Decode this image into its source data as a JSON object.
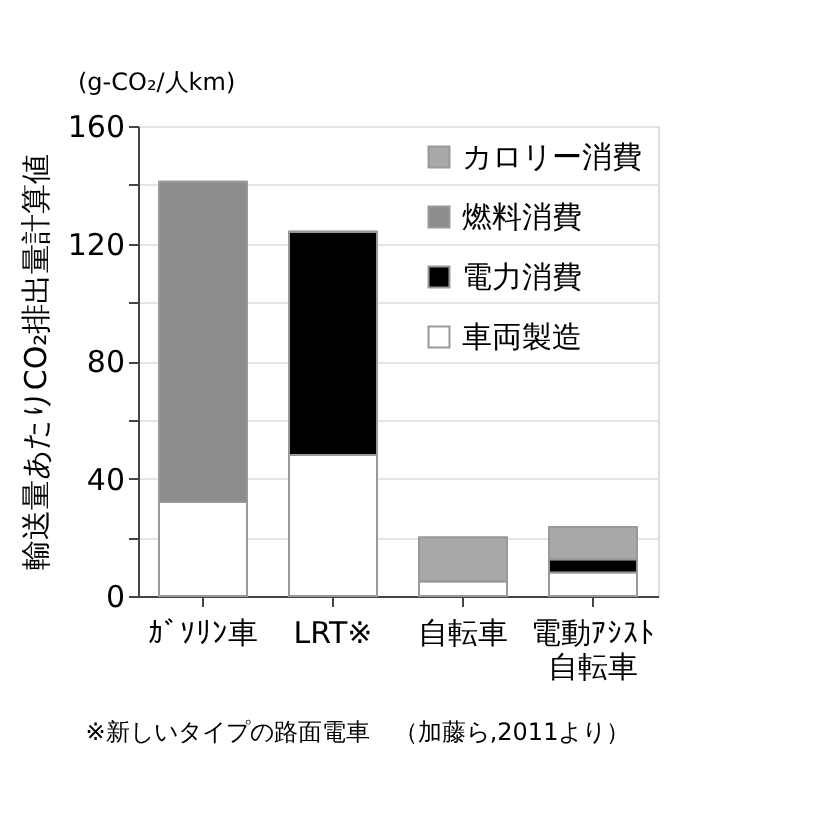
{
  "chart_data": {
    "type": "bar",
    "stacked": true,
    "ylabel": "輸送量あたりCO₂排出量計算値",
    "categories": [
      "ｶﾞｿﾘﾝ車",
      "LRT※",
      "自転車",
      "電動ｱｼｽﾄ自転車"
    ],
    "series": [
      {
        "name": "車両製造",
        "color": "#ffffff",
        "values": [
          32,
          48,
          5,
          8
        ]
      },
      {
        "name": "電力消費",
        "color": "#000000",
        "values": [
          0,
          76,
          0,
          4.5
        ]
      },
      {
        "name": "燃料消費",
        "color": "#8c8c8c",
        "values": [
          109,
          0,
          0,
          0
        ]
      },
      {
        "name": "カロリー消費",
        "color": "#a8a8a8",
        "values": [
          0,
          0,
          15,
          11
        ]
      }
    ],
    "ylim": [
      0,
      160
    ],
    "yticks": [
      0,
      {
        "value": 20,
        "label": null
      },
      40,
      {
        "value": 60,
        "label": null
      },
      80,
      {
        "value": 100,
        "label": null
      },
      120,
      {
        "value": 140,
        "label": null
      },
      160
    ],
    "grid": "y",
    "legend": "top right",
    "annotations": [
      "(g-CO₂/人km)",
      "※新しいタイプの路面電車　（加藤ら,2011より）"
    ]
  }
}
